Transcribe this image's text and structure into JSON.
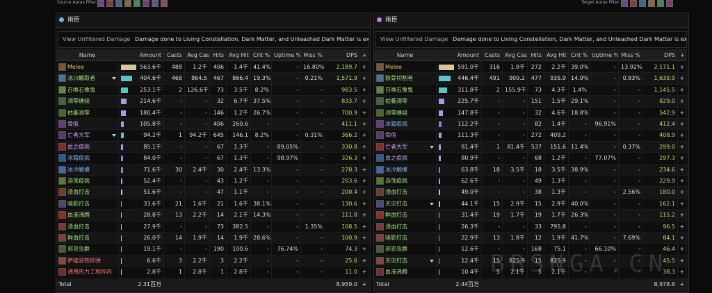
{
  "filters": {
    "source": "Source Auras Filter:",
    "target": "Target Auras Filter:"
  },
  "watermark": "BBSNGA.CN",
  "row_button": "+",
  "panels": [
    {
      "header": "雨臣",
      "dot": "#6fb7d6",
      "notice": {
        "button": "View Unfiltered Damage",
        "text": "Damage done to Living Constellation, Dark Matter, and Unleashed Dark Matter is excluded."
      },
      "columns": [
        "Name",
        "Amount",
        "Casts",
        "Avg Cast",
        "Hits",
        "Avg Hit",
        "Crit %",
        "Uptime %",
        "Miss %",
        "DPS",
        "+"
      ],
      "rows": [
        {
          "cells": [
            "Melee",
            "563.6千",
            "488",
            "1.2千",
            "406",
            "1.4千",
            "41.4%",
            "-",
            "16.80%",
            "2,189.7"
          ],
          "color": "#e6c35c",
          "bar": "#d8c79a"
        },
        {
          "cells": [
            "冰川輪取者",
            "404.6千",
            "468",
            "864.5",
            "467",
            "866.4",
            "19.3%",
            "-",
            "0.21%",
            "1,571.9"
          ],
          "color": "#9fe07a",
          "bar": "#5ec3c9",
          "expandable": true
        },
        {
          "cells": [
            "召唤石像鬼",
            "253.1千",
            "2",
            "126.6千",
            "73",
            "3.5千",
            "8.2%",
            "-",
            "-",
            "983.5"
          ],
          "color": "#9fe07a",
          "bar": "#5ec3c9"
        },
        {
          "cells": [
            "凋零缠绕",
            "214.6千",
            "-",
            "-",
            "32",
            "6.7千",
            "37.5%",
            "-",
            "-",
            "833.7"
          ],
          "color": "#9fe07a",
          "bar": "#a99ce6"
        },
        {
          "cells": [
            "枯萎凋零",
            "180.4千",
            "-",
            "-",
            "146",
            "1.2千",
            "26.7%",
            "-",
            "-",
            "700.9"
          ],
          "color": "#9fe07a",
          "bar": "#a99ce6"
        },
        {
          "cells": [
            "骨疽",
            "105.8千",
            "-",
            "-",
            "406",
            "260.6",
            "-",
            "-",
            "-",
            "411.1"
          ],
          "color": "#c79ef0",
          "bar": "#a99ce6"
        },
        {
          "cells": [
            "亡者大军",
            "94.2千",
            "1",
            "94.2千",
            "645",
            "146.1",
            "8.2%",
            "-",
            "0.31%",
            "366.2"
          ],
          "color": "#c79ef0",
          "bar": "#5ec3c9",
          "expandable": true
        },
        {
          "cells": [
            "血之疫病",
            "85.1千",
            "-",
            "-",
            "67",
            "1.3千",
            "-",
            "89.05%",
            "-",
            "330.8"
          ],
          "color": "#c79ef0",
          "bar": "#a99ce6"
        },
        {
          "cells": [
            "冰霜疫病",
            "84.0千",
            "-",
            "-",
            "67",
            "1.3千",
            "-",
            "98.97%",
            "-",
            "326.3"
          ],
          "color": "#7fb2f0",
          "bar": "#6f8ee8"
        },
        {
          "cells": [
            "冰冷触摸",
            "71.6千",
            "30",
            "2.4千",
            "30",
            "2.4千",
            "13.3%",
            "-",
            "-",
            "278.3"
          ],
          "color": "#7fb2f0",
          "bar": "#6f8ee8"
        },
        {
          "cells": [
            "游荡疫病",
            "52.4千",
            "-",
            "-",
            "43",
            "1.2千",
            "-",
            "-",
            "-",
            "203.6"
          ],
          "color": "#9fe07a",
          "bar": "#a99ce6"
        },
        {
          "cells": [
            "浸血打击",
            "51.6千",
            "-",
            "-",
            "47",
            "1.1千",
            "-",
            "-",
            "-",
            "200.4"
          ],
          "color": "#9fe07a",
          "bar": "#d8c79a"
        },
        {
          "cells": [
            "暗影打击",
            "33.6千",
            "21",
            "1.6千",
            "21",
            "1.6千",
            "38.1%",
            "-",
            "-",
            "130.6"
          ],
          "color": "#9fe07a",
          "bar": "#a99ce6"
        },
        {
          "cells": [
            "血液沸腾",
            "28.8千",
            "13",
            "2.2千",
            "14",
            "2.1千",
            "14.3%",
            "-",
            "-",
            "111.8"
          ],
          "color": "#9fe07a",
          "bar": "#d8c79a"
        },
        {
          "cells": [
            "浸血打击",
            "27.9千",
            "-",
            "-",
            "73",
            "382.5",
            "-",
            "-",
            "1.35%",
            "108.5"
          ],
          "color": "#9fe07a",
          "bar": "#d8c79a"
        },
        {
          "cells": [
            "鲜血打击",
            "26.0千",
            "14",
            "1.9千",
            "14",
            "1.9千",
            "28.6%",
            "-",
            "-",
            "100.9"
          ],
          "color": "#9fe07a",
          "bar": "#d8c79a"
        },
        {
          "cells": [
            "邪恶虫群",
            "19.1千",
            "-",
            "-",
            "190",
            "100.6",
            "-",
            "76.74%",
            "-",
            "74.3"
          ],
          "color": "#9fe07a",
          "bar": "#a99ce6"
        },
        {
          "cells": [
            "萨隆邪铁炸弹",
            "6.6千",
            "3",
            "2.2千",
            "3",
            "2.2千",
            "-",
            "-",
            "-",
            "25.6"
          ],
          "color": "#f07a6a",
          "bar": "#d8c79a"
        },
        {
          "cells": [
            "通用热力工程炸药",
            "2.8千",
            "1",
            "2.8千",
            "1",
            "2.8千",
            "-",
            "-",
            "-",
            "11.0"
          ],
          "color": "#f07a6a",
          "bar": "#d8c79a"
        }
      ],
      "total": {
        "label": "Total",
        "amount": "2.31百万",
        "dps": "8,959.0"
      }
    },
    {
      "header": "雨臣",
      "dot": "#c27ee0",
      "notice": {
        "button": "View Unfiltered Damage",
        "text": "Damage done to Living Constellation, Dark Matter, and Unleashed Dark Matter is excluded."
      },
      "columns": [
        "Name",
        "Amount",
        "Casts",
        "Avg Cast",
        "Hits",
        "Avg Hit",
        "Crit %",
        "Uptime %",
        "Miss %",
        "DPS",
        "+"
      ],
      "rows": [
        {
          "cells": [
            "Melee",
            "591.0千",
            "316",
            "1.9千",
            "272",
            "2.2千",
            "39.0%",
            "-",
            "13.92%",
            "2,171.1"
          ],
          "color": "#e6c35c",
          "bar": "#d8c79a"
        },
        {
          "cells": [
            "骸骨切割者",
            "446.4千",
            "491",
            "909.2",
            "477",
            "935.9",
            "14.9%",
            "-",
            "0.83%",
            "1,639.9"
          ],
          "color": "#9fe07a",
          "bar": "#5ec3c9"
        },
        {
          "cells": [
            "召唤石像鬼",
            "311.8千",
            "2",
            "155.9千",
            "73",
            "4.3千",
            "1.4%",
            "-",
            "-",
            "1,145.5"
          ],
          "color": "#9fe07a",
          "bar": "#5ec3c9"
        },
        {
          "cells": [
            "枯萎凋零",
            "225.7千",
            "-",
            "-",
            "151",
            "1.5千",
            "29.1%",
            "-",
            "-",
            "829.0"
          ],
          "color": "#9fe07a",
          "bar": "#a99ce6"
        },
        {
          "cells": [
            "凋零缠绕",
            "147.8千",
            "-",
            "-",
            "32",
            "4.6千",
            "18.8%",
            "-",
            "-",
            "542.9"
          ],
          "color": "#9fe07a",
          "bar": "#a99ce6"
        },
        {
          "cells": [
            "冰霜疫病",
            "112.2千",
            "-",
            "-",
            "82",
            "1.4千",
            "-",
            "96.91%",
            "-",
            "412.4"
          ],
          "color": "#7fb2f0",
          "bar": "#6f8ee8"
        },
        {
          "cells": [
            "骨疽",
            "111.3千",
            "-",
            "-",
            "272",
            "409.2",
            "-",
            "-",
            "-",
            "408.9"
          ],
          "color": "#c79ef0",
          "bar": "#a99ce6"
        },
        {
          "cells": [
            "亡者大军",
            "81.4千",
            "1",
            "81.4千",
            "537",
            "151.6",
            "11.4%",
            "-",
            "0.37%",
            "299.0"
          ],
          "color": "#c79ef0",
          "bar": "#a99ce6",
          "expandable": true
        },
        {
          "cells": [
            "血之疫病",
            "80.9千",
            "-",
            "-",
            "68",
            "1.2千",
            "-",
            "77.07%",
            "-",
            "297.3"
          ],
          "color": "#c79ef0",
          "bar": "#a99ce6"
        },
        {
          "cells": [
            "冰冷触摸",
            "63.8千",
            "18",
            "3.5千",
            "18",
            "3.5千",
            "38.9%",
            "-",
            "-",
            "234.6"
          ],
          "color": "#7fb2f0",
          "bar": "#6f8ee8"
        },
        {
          "cells": [
            "游荡疫病",
            "62.6千",
            "-",
            "-",
            "49",
            "1.3千",
            "-",
            "-",
            "-",
            "229.9"
          ],
          "color": "#9fe07a",
          "bar": "#a99ce6"
        },
        {
          "cells": [
            "浸血打击",
            "49.0千",
            "-",
            "-",
            "38",
            "1.3千",
            "-",
            "-",
            "2.56%",
            "180.0"
          ],
          "color": "#9fe07a",
          "bar": "#d8c79a"
        },
        {
          "cells": [
            "天灾打击",
            "44.1千",
            "15",
            "2.9千",
            "15",
            "2.9千",
            "40.0%",
            "-",
            "-",
            "162.1"
          ],
          "color": "#9fe07a",
          "bar": "#d8c79a",
          "expandable": true
        },
        {
          "cells": [
            "鲜血打击",
            "31.4千",
            "19",
            "1.7千",
            "19",
            "1.7千",
            "26.3%",
            "-",
            "-",
            "115.2"
          ],
          "color": "#9fe07a",
          "bar": "#d8c79a"
        },
        {
          "cells": [
            "浸血打击",
            "26.3千",
            "-",
            "-",
            "33",
            "795.8",
            "-",
            "-",
            "-",
            "96.5"
          ],
          "color": "#9fe07a",
          "bar": "#d8c79a"
        },
        {
          "cells": [
            "暗影打击",
            "22.9千",
            "13",
            "1.8千",
            "12",
            "1.9千",
            "41.7%",
            "-",
            "7.69%",
            "84.1"
          ],
          "color": "#9fe07a",
          "bar": "#a99ce6"
        },
        {
          "cells": [
            "邪恶虫群",
            "12.6千",
            "-",
            "-",
            "168",
            "75.1",
            "-",
            "66.10%",
            "-",
            "46.4"
          ],
          "color": "#9fe07a",
          "bar": "#a99ce6"
        },
        {
          "cells": [
            "天灾打击",
            "12.4千",
            "15",
            "825.9",
            "15",
            "825.9",
            "-",
            "-",
            "-",
            "45.5"
          ],
          "color": "#9fe07a",
          "bar": "#a99ce6",
          "expandable": true
        },
        {
          "cells": [
            "血液沸腾",
            "10.4千",
            "5",
            "2.1千",
            "5",
            "2.1千",
            "-",
            "-",
            "-",
            "38.3"
          ],
          "color": "#9fe07a",
          "bar": "#d8c79a"
        }
      ],
      "total": {
        "label": "Total",
        "amount": "2.44百万",
        "dps": "8,978.6"
      }
    }
  ]
}
